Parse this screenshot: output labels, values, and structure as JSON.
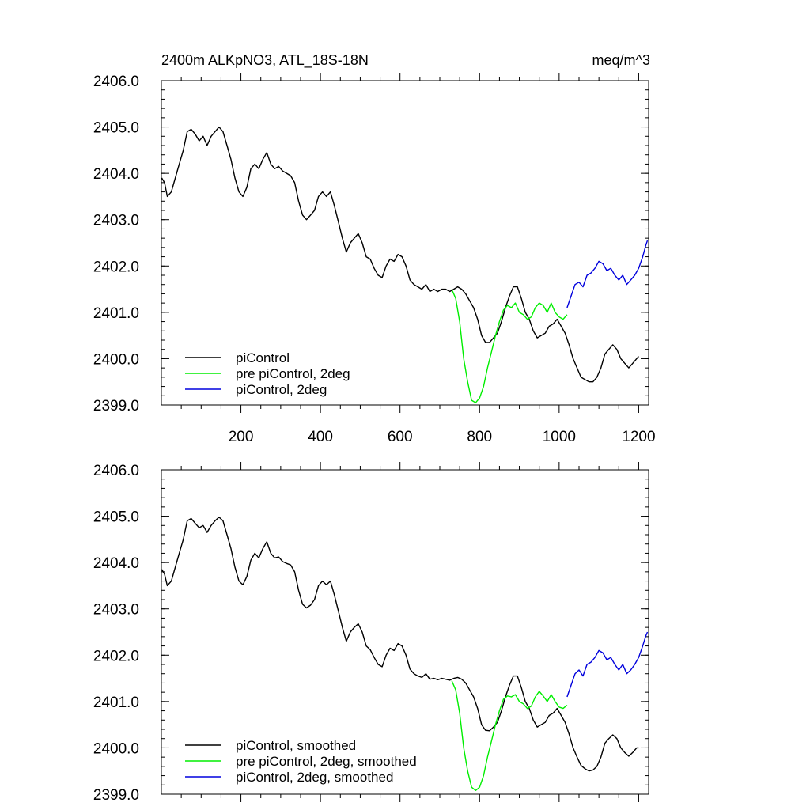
{
  "title": "2400m ALKpNO3, ATL_18S-18N",
  "units": "meq/m^3",
  "colors": {
    "piControl": "#000000",
    "pre_piControl_2deg": "#00ee00",
    "piControl_2deg": "#0000dd"
  },
  "chart_data": [
    {
      "type": "line",
      "xlim": [
        0,
        1225
      ],
      "ylim": [
        2399.0,
        2406.0
      ],
      "xticks": [
        200,
        400,
        600,
        800,
        1000,
        1200
      ],
      "xtick_labels": [
        "200",
        "400",
        "600",
        "800",
        "1000",
        "1200"
      ],
      "yticks": [
        2399.0,
        2400.0,
        2401.0,
        2402.0,
        2403.0,
        2404.0,
        2405.0,
        2406.0
      ],
      "ytick_labels": [
        "2399.0",
        "2400.0",
        "2401.0",
        "2402.0",
        "2403.0",
        "2404.0",
        "2405.0",
        "2406.0"
      ],
      "legend_position": "bottom-left",
      "series": [
        {
          "name": "piControl",
          "color": "#000000",
          "x": [
            1,
            8,
            15,
            25,
            35,
            45,
            55,
            65,
            75,
            85,
            95,
            105,
            115,
            125,
            135,
            145,
            155,
            165,
            175,
            185,
            195,
            205,
            215,
            225,
            235,
            245,
            255,
            265,
            275,
            285,
            295,
            305,
            315,
            325,
            335,
            345,
            355,
            365,
            375,
            385,
            395,
            405,
            415,
            425,
            435,
            445,
            455,
            465,
            475,
            485,
            495,
            505,
            515,
            525,
            535,
            545,
            555,
            565,
            575,
            585,
            595,
            605,
            615,
            625,
            635,
            645,
            655,
            665,
            675,
            685,
            695,
            705,
            715,
            725,
            735,
            745,
            755,
            765,
            775,
            785,
            795,
            805,
            815,
            825,
            835,
            845,
            855,
            865,
            875,
            885,
            895,
            905,
            915,
            925,
            935,
            945,
            955,
            965,
            975,
            985,
            995,
            1005,
            1015,
            1025,
            1035,
            1045,
            1055,
            1065,
            1075,
            1085,
            1095,
            1105,
            1115,
            1125,
            1135,
            1145,
            1155,
            1165,
            1175,
            1185,
            1195,
            1200
          ],
          "y": [
            2403.9,
            2403.8,
            2403.5,
            2403.6,
            2403.9,
            2404.2,
            2404.5,
            2404.9,
            2404.95,
            2404.85,
            2404.7,
            2404.8,
            2404.6,
            2404.8,
            2404.9,
            2405.0,
            2404.9,
            2404.6,
            2404.3,
            2403.9,
            2403.6,
            2403.5,
            2403.7,
            2404.1,
            2404.2,
            2404.1,
            2404.3,
            2404.45,
            2404.2,
            2404.1,
            2404.15,
            2404.05,
            2404.0,
            2403.95,
            2403.8,
            2403.4,
            2403.1,
            2403.0,
            2403.1,
            2403.2,
            2403.5,
            2403.6,
            2403.5,
            2403.6,
            2403.3,
            2402.95,
            2402.6,
            2402.3,
            2402.5,
            2402.6,
            2402.7,
            2402.5,
            2402.2,
            2402.15,
            2401.95,
            2401.8,
            2401.75,
            2402.0,
            2402.15,
            2402.1,
            2402.25,
            2402.2,
            2402.0,
            2401.7,
            2401.6,
            2401.55,
            2401.5,
            2401.6,
            2401.45,
            2401.5,
            2401.45,
            2401.5,
            2401.5,
            2401.45,
            2401.5,
            2401.55,
            2401.5,
            2401.4,
            2401.25,
            2401.1,
            2400.85,
            2400.5,
            2400.35,
            2400.35,
            2400.45,
            2400.55,
            2400.8,
            2401.1,
            2401.35,
            2401.55,
            2401.55,
            2401.3,
            2401.0,
            2400.85,
            2400.6,
            2400.45,
            2400.5,
            2400.55,
            2400.7,
            2400.75,
            2400.85,
            2400.7,
            2400.55,
            2400.3,
            2400.0,
            2399.8,
            2399.6,
            2399.55,
            2399.5,
            2399.5,
            2399.6,
            2399.8,
            2400.1,
            2400.2,
            2400.3,
            2400.2,
            2400.0,
            2399.9,
            2399.8,
            2399.9,
            2400.0,
            2400.05
          ]
        },
        {
          "name": "pre piControl, 2deg",
          "color": "#00ee00",
          "x": [
            730,
            740,
            750,
            760,
            770,
            780,
            790,
            800,
            810,
            820,
            830,
            840,
            850,
            860,
            870,
            880,
            890,
            900,
            910,
            920,
            930,
            940,
            950,
            960,
            970,
            980,
            990,
            1000,
            1010,
            1020
          ],
          "y": [
            2401.5,
            2401.3,
            2400.8,
            2400.0,
            2399.5,
            2399.1,
            2399.05,
            2399.15,
            2399.4,
            2399.8,
            2400.15,
            2400.5,
            2400.8,
            2401.05,
            2401.15,
            2401.1,
            2401.2,
            2401.0,
            2400.95,
            2400.85,
            2400.9,
            2401.1,
            2401.2,
            2401.15,
            2401.0,
            2401.2,
            2401.0,
            2400.9,
            2400.85,
            2400.95
          ]
        },
        {
          "name": "piControl, 2deg",
          "color": "#0000dd",
          "x": [
            1020,
            1030,
            1040,
            1050,
            1060,
            1070,
            1080,
            1090,
            1100,
            1110,
            1120,
            1130,
            1140,
            1150,
            1160,
            1170,
            1180,
            1190,
            1200,
            1210,
            1218,
            1222
          ],
          "y": [
            2401.1,
            2401.35,
            2401.6,
            2401.65,
            2401.55,
            2401.8,
            2401.85,
            2401.95,
            2402.1,
            2402.05,
            2401.9,
            2401.95,
            2401.8,
            2401.7,
            2401.8,
            2401.6,
            2401.7,
            2401.8,
            2401.95,
            2402.2,
            2402.45,
            2402.55
          ]
        }
      ]
    },
    {
      "type": "line",
      "xlim": [
        0,
        1225
      ],
      "ylim": [
        2399.0,
        2406.0
      ],
      "xticks": [
        200,
        400,
        600,
        800,
        1000,
        1200
      ],
      "yticks": [
        2399.0,
        2400.0,
        2401.0,
        2402.0,
        2403.0,
        2404.0,
        2405.0,
        2406.0
      ],
      "ytick_labels": [
        "2399.0",
        "2400.0",
        "2401.0",
        "2402.0",
        "2403.0",
        "2404.0",
        "2405.0",
        "2406.0"
      ],
      "legend_position": "bottom-left",
      "series": [
        {
          "name": "piControl, smoothed",
          "color": "#000000",
          "x": [
            1,
            8,
            15,
            25,
            35,
            45,
            55,
            65,
            75,
            85,
            95,
            105,
            115,
            125,
            135,
            145,
            155,
            165,
            175,
            185,
            195,
            205,
            215,
            225,
            235,
            245,
            255,
            265,
            275,
            285,
            295,
            305,
            315,
            325,
            335,
            345,
            355,
            365,
            375,
            385,
            395,
            405,
            415,
            425,
            435,
            445,
            455,
            465,
            475,
            485,
            495,
            505,
            515,
            525,
            535,
            545,
            555,
            565,
            575,
            585,
            595,
            605,
            615,
            625,
            635,
            645,
            655,
            665,
            675,
            685,
            695,
            705,
            715,
            725,
            735,
            745,
            755,
            765,
            775,
            785,
            795,
            805,
            815,
            825,
            835,
            845,
            855,
            865,
            875,
            885,
            895,
            905,
            915,
            925,
            935,
            945,
            955,
            965,
            975,
            985,
            995,
            1005,
            1015,
            1025,
            1035,
            1045,
            1055,
            1065,
            1075,
            1085,
            1095,
            1105,
            1115,
            1125,
            1135,
            1145,
            1155,
            1165,
            1175,
            1185,
            1195,
            1200
          ],
          "y": [
            2403.85,
            2403.75,
            2403.5,
            2403.6,
            2403.9,
            2404.2,
            2404.5,
            2404.9,
            2404.95,
            2404.85,
            2404.75,
            2404.8,
            2404.65,
            2404.8,
            2404.9,
            2404.98,
            2404.9,
            2404.6,
            2404.3,
            2403.9,
            2403.6,
            2403.52,
            2403.7,
            2404.05,
            2404.2,
            2404.1,
            2404.3,
            2404.45,
            2404.2,
            2404.1,
            2404.12,
            2404.02,
            2403.98,
            2403.95,
            2403.8,
            2403.4,
            2403.1,
            2403.02,
            2403.08,
            2403.2,
            2403.5,
            2403.6,
            2403.52,
            2403.6,
            2403.3,
            2402.95,
            2402.6,
            2402.3,
            2402.5,
            2402.6,
            2402.68,
            2402.5,
            2402.2,
            2402.12,
            2401.95,
            2401.8,
            2401.75,
            2402.0,
            2402.15,
            2402.1,
            2402.25,
            2402.2,
            2402.0,
            2401.7,
            2401.6,
            2401.55,
            2401.52,
            2401.6,
            2401.48,
            2401.5,
            2401.47,
            2401.5,
            2401.48,
            2401.46,
            2401.5,
            2401.52,
            2401.48,
            2401.4,
            2401.25,
            2401.1,
            2400.85,
            2400.5,
            2400.38,
            2400.37,
            2400.45,
            2400.55,
            2400.8,
            2401.1,
            2401.35,
            2401.55,
            2401.55,
            2401.3,
            2401.0,
            2400.85,
            2400.6,
            2400.45,
            2400.5,
            2400.55,
            2400.7,
            2400.75,
            2400.85,
            2400.7,
            2400.55,
            2400.3,
            2400.0,
            2399.8,
            2399.62,
            2399.55,
            2399.5,
            2399.52,
            2399.6,
            2399.8,
            2400.1,
            2400.2,
            2400.28,
            2400.2,
            2400.0,
            2399.9,
            2399.82,
            2399.9,
            2400.0,
            2400.0
          ]
        },
        {
          "name": "pre piControl, 2deg, smoothed",
          "color": "#00ee00",
          "x": [
            730,
            740,
            750,
            760,
            770,
            780,
            790,
            800,
            810,
            820,
            830,
            840,
            850,
            860,
            870,
            880,
            890,
            900,
            910,
            920,
            930,
            940,
            950,
            960,
            970,
            980,
            990,
            1000,
            1010,
            1020
          ],
          "y": [
            2401.45,
            2401.25,
            2400.75,
            2400.0,
            2399.5,
            2399.15,
            2399.08,
            2399.15,
            2399.4,
            2399.8,
            2400.15,
            2400.5,
            2400.8,
            2401.05,
            2401.12,
            2401.1,
            2401.15,
            2401.0,
            2400.95,
            2400.85,
            2400.9,
            2401.1,
            2401.22,
            2401.12,
            2401.0,
            2401.15,
            2401.0,
            2400.88,
            2400.85,
            2400.92
          ]
        },
        {
          "name": "piControl, 2deg, smoothed",
          "color": "#0000dd",
          "x": [
            1020,
            1030,
            1040,
            1050,
            1060,
            1070,
            1080,
            1090,
            1100,
            1110,
            1120,
            1130,
            1140,
            1150,
            1160,
            1170,
            1180,
            1190,
            1200,
            1210,
            1218,
            1222
          ],
          "y": [
            2401.1,
            2401.35,
            2401.6,
            2401.68,
            2401.55,
            2401.8,
            2401.85,
            2401.95,
            2402.1,
            2402.05,
            2401.9,
            2401.95,
            2401.8,
            2401.68,
            2401.8,
            2401.6,
            2401.68,
            2401.8,
            2401.95,
            2402.2,
            2402.42,
            2402.5
          ]
        }
      ]
    }
  ]
}
